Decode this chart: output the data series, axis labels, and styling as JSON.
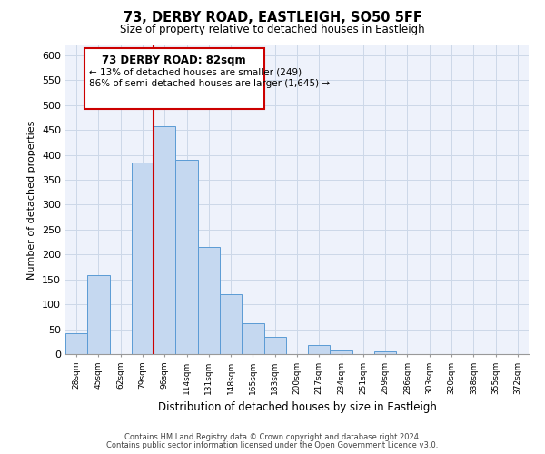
{
  "title": "73, DERBY ROAD, EASTLEIGH, SO50 5FF",
  "subtitle": "Size of property relative to detached houses in Eastleigh",
  "xlabel": "Distribution of detached houses by size in Eastleigh",
  "ylabel": "Number of detached properties",
  "bin_labels": [
    "28sqm",
    "45sqm",
    "62sqm",
    "79sqm",
    "96sqm",
    "114sqm",
    "131sqm",
    "148sqm",
    "165sqm",
    "183sqm",
    "200sqm",
    "217sqm",
    "234sqm",
    "251sqm",
    "269sqm",
    "286sqm",
    "303sqm",
    "320sqm",
    "338sqm",
    "355sqm",
    "372sqm"
  ],
  "bar_heights": [
    42,
    158,
    0,
    385,
    458,
    390,
    215,
    120,
    62,
    35,
    0,
    18,
    7,
    0,
    5,
    0,
    0,
    0,
    0,
    0,
    0
  ],
  "bar_color": "#c5d8f0",
  "bar_edge_color": "#5b9bd5",
  "vline_x_index": 3,
  "vline_color": "#cc0000",
  "ylim": [
    0,
    620
  ],
  "yticks": [
    0,
    50,
    100,
    150,
    200,
    250,
    300,
    350,
    400,
    450,
    500,
    550,
    600
  ],
  "annotation_title": "73 DERBY ROAD: 82sqm",
  "annotation_line1": "← 13% of detached houses are smaller (249)",
  "annotation_line2": "86% of semi-detached houses are larger (1,645) →",
  "footer_line1": "Contains HM Land Registry data © Crown copyright and database right 2024.",
  "footer_line2": "Contains public sector information licensed under the Open Government Licence v3.0.",
  "grid_color": "#ccd8e8",
  "background_color": "#eef2fb"
}
